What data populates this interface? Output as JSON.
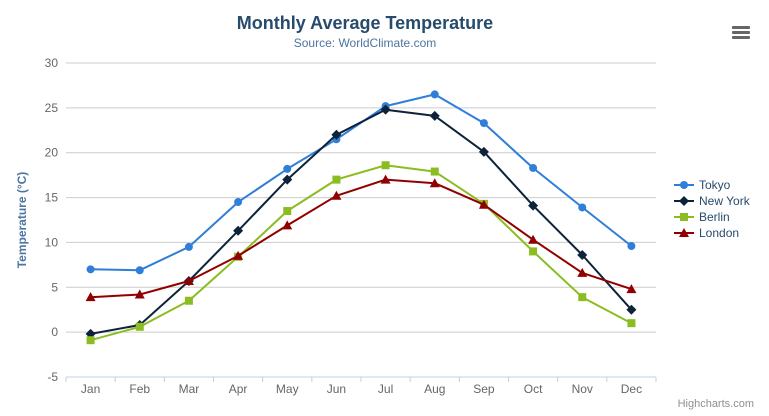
{
  "header": {
    "title": "Monthly Average Temperature",
    "subtitle": "Source: WorldClimate.com"
  },
  "credits_label": "Highcharts.com",
  "colors": {
    "title": "#274b6d",
    "subtitle": "#4d759e",
    "axis_title": "#4d759e",
    "tick_label": "#666666",
    "grid_line": "#cccccc",
    "axis_line": "#c0d0e0",
    "legend_text": "#274b6d",
    "credits": "#909090",
    "export_icon": "#666666"
  },
  "chart_data": {
    "type": "line",
    "title": "Monthly Average Temperature",
    "subtitle": "Source: WorldClimate.com",
    "categories": [
      "Jan",
      "Feb",
      "Mar",
      "Apr",
      "May",
      "Jun",
      "Jul",
      "Aug",
      "Sep",
      "Oct",
      "Nov",
      "Dec"
    ],
    "xlabel": "",
    "ylabel": "Temperature (°C)",
    "ylim": [
      -5,
      30
    ],
    "y_tick_interval": 5,
    "grid": true,
    "legend_position": "right",
    "series": [
      {
        "name": "Tokyo",
        "color": "#2f7ed8",
        "marker": "circle",
        "values": [
          7.0,
          6.9,
          9.5,
          14.5,
          18.2,
          21.5,
          25.2,
          26.5,
          23.3,
          18.3,
          13.9,
          9.6
        ]
      },
      {
        "name": "New York",
        "color": "#0d233a",
        "marker": "diamond",
        "values": [
          -0.2,
          0.8,
          5.7,
          11.3,
          17.0,
          22.0,
          24.8,
          24.1,
          20.1,
          14.1,
          8.6,
          2.5
        ]
      },
      {
        "name": "Berlin",
        "color": "#8bbc21",
        "marker": "square",
        "values": [
          -0.9,
          0.6,
          3.5,
          8.4,
          13.5,
          17.0,
          18.6,
          17.9,
          14.3,
          9.0,
          3.9,
          1.0
        ]
      },
      {
        "name": "London",
        "color": "#910000",
        "marker": "triangle",
        "values": [
          3.9,
          4.2,
          5.7,
          8.5,
          11.9,
          15.2,
          17.0,
          16.6,
          14.2,
          10.3,
          6.6,
          4.8
        ]
      }
    ]
  }
}
